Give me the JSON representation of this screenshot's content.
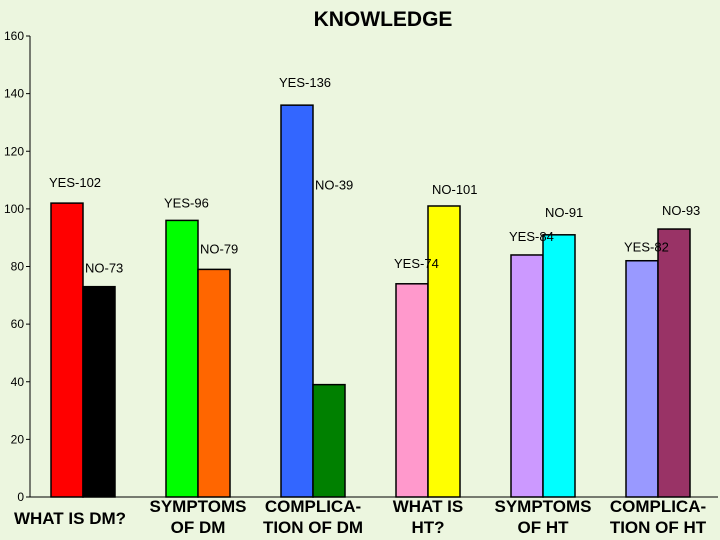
{
  "chart_data": {
    "type": "bar",
    "title": "KNOWLEDGE",
    "ylim": [
      0,
      160
    ],
    "yticks": [
      0,
      20,
      40,
      60,
      80,
      100,
      120,
      140,
      160
    ],
    "grid": false,
    "legend": "none",
    "categories": [
      [
        "WHAT IS DM?"
      ],
      [
        "SYMPTOMS",
        "OF DM"
      ],
      [
        "COMPLICA-",
        "TION OF DM"
      ],
      [
        "WHAT IS",
        "HT?"
      ],
      [
        "SYMPTOMS",
        "OF HT"
      ],
      [
        "COMPLICA-",
        "TION OF HT"
      ]
    ],
    "bars": [
      [
        {
          "value": 102,
          "label": "YES-102",
          "color": "#ff0000"
        },
        {
          "value": 73,
          "label": "NO-73",
          "color": "#000000"
        }
      ],
      [
        {
          "value": 96,
          "label": "YES-96",
          "color": "#00ff00"
        },
        {
          "value": 79,
          "label": "NO-79",
          "color": "#ff6600"
        }
      ],
      [
        {
          "value": 136,
          "label": "YES-136",
          "color": "#3366ff"
        },
        {
          "value": 39,
          "label": "NO-39",
          "color": "#008000"
        }
      ],
      [
        {
          "value": 74,
          "label": "YES-74",
          "color": "#ff99cc"
        },
        {
          "value": 101,
          "label": "NO-101",
          "color": "#ffff00"
        }
      ],
      [
        {
          "value": 84,
          "label": "YES-84",
          "color": "#cc99ff"
        },
        {
          "value": 91,
          "label": "NO-91",
          "color": "#00ffff"
        }
      ],
      [
        {
          "value": 82,
          "label": "YES-82",
          "color": "#9999ff"
        },
        {
          "value": 93,
          "label": "NO-93",
          "color": "#993366"
        }
      ]
    ]
  }
}
